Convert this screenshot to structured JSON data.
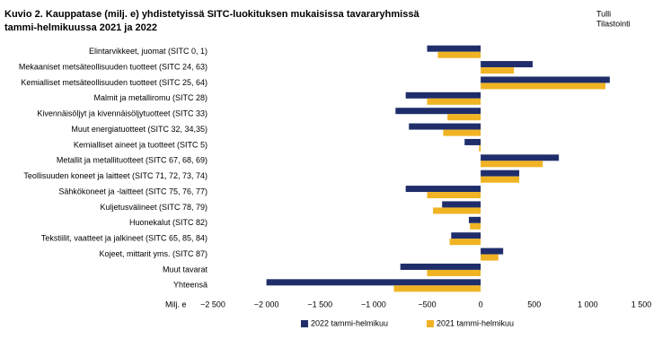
{
  "chart_data": {
    "type": "bar",
    "orientation": "horizontal",
    "title": [
      "Kuvio  2. Kauppatase (milj. e) yhdistetyissä SITC-luokituksen mukaisissa tavararyhmissä",
      "tammi-helmikuussa 2021 ja 2022"
    ],
    "source": [
      "Tulli",
      "Tilastointi"
    ],
    "x_label": "Milj. e",
    "categories": [
      "Elintarvikkeet, juomat (SITC 0, 1)",
      "Mekaaniset metsäteollisuuden tuotteet (SITC 24, 63)",
      "Kemialliset metsäteollisuuden tuotteet (SITC 25, 64)",
      "Malmit ja metalliromu (SITC 28)",
      "Kivennäisöljyt ja kivennäisöljytuotteet (SITC 33)",
      "Muut energiatuotteet (SITC 32, 34,35)",
      "Kemialliset aineet ja tuotteet (SITC 5)",
      "Metallit ja metallituotteet (SITC 67, 68, 69)",
      "Teollisuuden koneet ja laitteet (SITC 71, 72, 73, 74)",
      "Sähkökoneet ja -laitteet (SITC 75, 76, 77)",
      "Kuljetusvälineet (SITC 78, 79)",
      "Huonekalut (SITC 82)",
      "Tekstiilit, vaatteet ja jalkineet (SITC 65, 85, 84)",
      "Kojeet, mittarit yms. (SITC 87)",
      "Muut tavarat",
      "Yhteensä"
    ],
    "series": [
      {
        "name": "2022 tammi-helmikuu",
        "color": "#1f2e6b",
        "values": [
          -500,
          485,
          1205,
          -700,
          -795,
          -670,
          -150,
          730,
          360,
          -700,
          -360,
          -110,
          -275,
          210,
          -750,
          -2000
        ]
      },
      {
        "name": "2021 tammi-helmikuu",
        "color": "#f0b323",
        "values": [
          -400,
          310,
          1165,
          -500,
          -310,
          -350,
          -15,
          580,
          360,
          -500,
          -445,
          -100,
          -290,
          165,
          -500,
          -810
        ]
      }
    ],
    "xlim": [
      -2500,
      1500
    ],
    "xticks": [
      {
        "value": -2500,
        "label": "−2 500"
      },
      {
        "value": -2000,
        "label": "−2 000"
      },
      {
        "value": -1500,
        "label": "−1 500"
      },
      {
        "value": -1000,
        "label": "−1 000"
      },
      {
        "value": -500,
        "label": "−500"
      },
      0,
      500,
      {
        "value": 1000,
        "label": "1 000"
      },
      {
        "value": 1500,
        "label": "1 500"
      }
    ],
    "grid": false,
    "legend": "bottom"
  }
}
